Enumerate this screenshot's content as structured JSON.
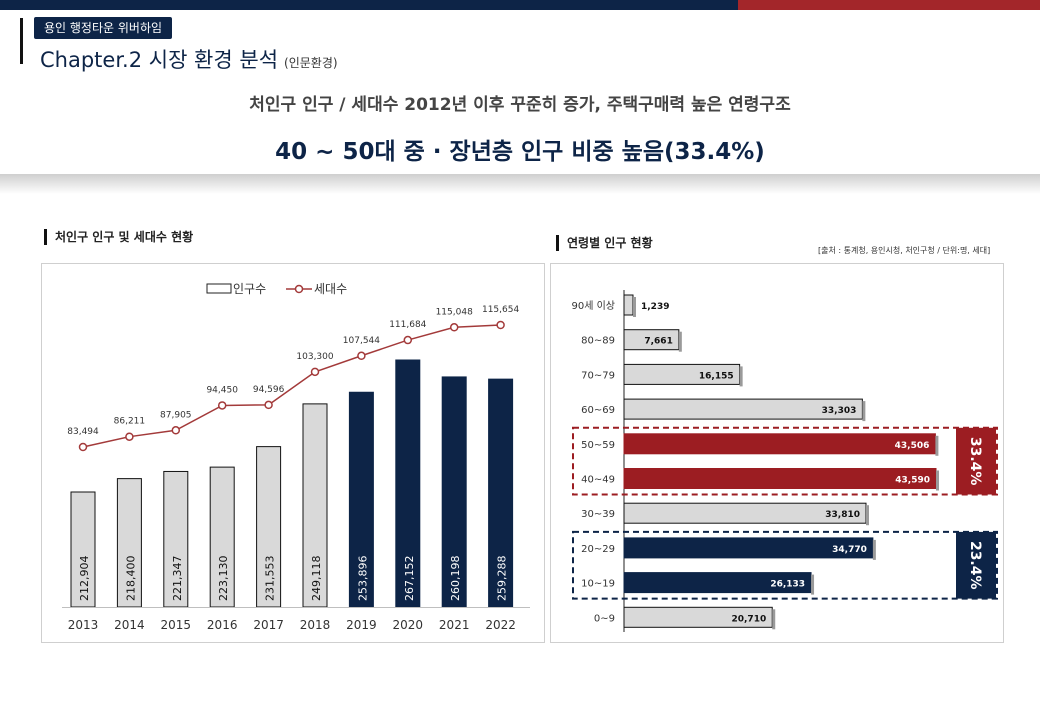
{
  "header": {
    "brand": "용인 행정타운 위버하임",
    "chapter": "Chapter.2 시장 환경 분석",
    "chapter_sub": "(인문환경)"
  },
  "headline": {
    "line1": "처인구 인구 / 세대수 2012년 이후 꾸준히 증가, 주택구매력 높은 연령구조",
    "line2": "40 ~ 50대 중 · 장년층 인구 비중 높음(33.4%)"
  },
  "left_panel": {
    "title": "처인구 인구 및 세대수 현황"
  },
  "right_panel": {
    "title": "연령별 인구 현황",
    "source": "[출처 : 통계청, 용인시청, 처인구청 / 단위:명, 세대]"
  },
  "colors": {
    "navy": "#0d2447",
    "red": "#9c1d22",
    "gray_bar": "#d9d9d9",
    "line": "#a33a3a"
  },
  "chart_data": [
    {
      "type": "bar+line",
      "categories": [
        "2013",
        "2014",
        "2015",
        "2016",
        "2017",
        "2018",
        "2019",
        "2020",
        "2021",
        "2022"
      ],
      "series": [
        {
          "name": "인구수",
          "type": "bar",
          "values": [
            212904,
            218400,
            221347,
            223130,
            231553,
            249118,
            253896,
            267152,
            260198,
            259288
          ],
          "labels": [
            "212,904",
            "218,400",
            "221,347",
            "223,130",
            "231,553",
            "249,118",
            "253,896",
            "267,152",
            "260,198",
            "259,288"
          ],
          "highlight": [
            false,
            false,
            false,
            false,
            false,
            false,
            true,
            true,
            true,
            true
          ]
        },
        {
          "name": "세대수",
          "type": "line",
          "values": [
            83494,
            86211,
            87905,
            94450,
            94596,
            103300,
            107544,
            111684,
            115048,
            115654
          ],
          "labels": [
            "83,494",
            "86,211",
            "87,905",
            "94,450",
            "94,596",
            "103,300",
            "107,544",
            "111,684",
            "115,048",
            "115,654"
          ]
        }
      ],
      "legend": "top-center"
    },
    {
      "type": "bar",
      "orientation": "horizontal",
      "categories": [
        "90세 이상",
        "80~89",
        "70~79",
        "60~69",
        "50~59",
        "40~49",
        "30~39",
        "20~29",
        "10~19",
        "0~9"
      ],
      "values": [
        1239,
        7661,
        16155,
        33303,
        43506,
        43590,
        33810,
        34770,
        26133,
        20710
      ],
      "labels": [
        "1,239",
        "7,661",
        "16,155",
        "33,303",
        "43,506",
        "43,590",
        "33,810",
        "34,770",
        "26,133",
        "20,710"
      ],
      "fill": [
        "gray",
        "gray",
        "gray",
        "gray",
        "red",
        "red",
        "gray",
        "navy",
        "navy",
        "gray"
      ],
      "groups": [
        {
          "label": "33.4%",
          "rows": [
            4,
            5
          ],
          "color": "red"
        },
        {
          "label": "23.4%",
          "rows": [
            7,
            8
          ],
          "color": "navy"
        }
      ]
    }
  ]
}
